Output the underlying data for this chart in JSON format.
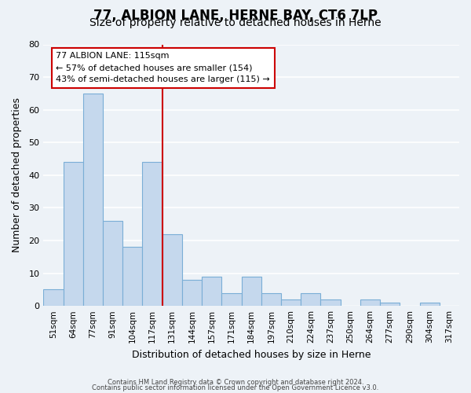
{
  "title": "77, ALBION LANE, HERNE BAY, CT6 7LP",
  "subtitle": "Size of property relative to detached houses in Herne",
  "xlabel": "Distribution of detached houses by size in Herne",
  "ylabel": "Number of detached properties",
  "bar_labels": [
    "51sqm",
    "64sqm",
    "77sqm",
    "91sqm",
    "104sqm",
    "117sqm",
    "131sqm",
    "144sqm",
    "157sqm",
    "171sqm",
    "184sqm",
    "197sqm",
    "210sqm",
    "224sqm",
    "237sqm",
    "250sqm",
    "264sqm",
    "277sqm",
    "290sqm",
    "304sqm",
    "317sqm"
  ],
  "bar_values": [
    5,
    44,
    65,
    26,
    18,
    44,
    22,
    8,
    9,
    4,
    9,
    4,
    2,
    4,
    2,
    0,
    2,
    1,
    0,
    1,
    0
  ],
  "bar_color": "#c5d8ed",
  "bar_edge_color": "#7aaed6",
  "vline_x": 5.5,
  "vline_color": "#cc0000",
  "annotation_title": "77 ALBION LANE: 115sqm",
  "annotation_line1": "← 57% of detached houses are smaller (154)",
  "annotation_line2": "43% of semi-detached houses are larger (115) →",
  "annotation_box_color": "#ffffff",
  "annotation_box_edge": "#cc0000",
  "ylim": [
    0,
    80
  ],
  "yticks": [
    0,
    10,
    20,
    30,
    40,
    50,
    60,
    70,
    80
  ],
  "footer1": "Contains HM Land Registry data © Crown copyright and database right 2024.",
  "footer2": "Contains public sector information licensed under the Open Government Licence v3.0.",
  "background_color": "#edf2f7",
  "grid_color": "#ffffff",
  "title_fontsize": 12,
  "subtitle_fontsize": 10,
  "axis_label_fontsize": 9
}
